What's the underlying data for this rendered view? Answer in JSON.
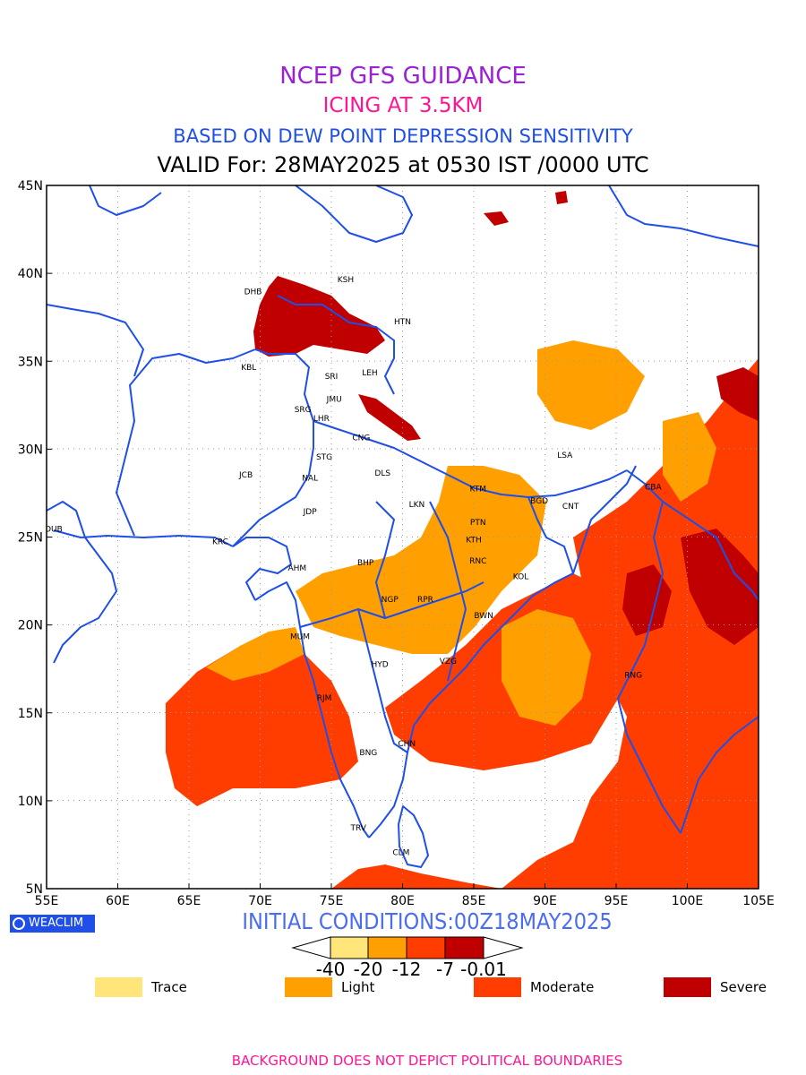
{
  "titles": {
    "line1": "NCEP GFS GUIDANCE",
    "line2": "ICING AT 3.5KM",
    "line3": "BASED ON DEW POINT DEPRESSION SENSITIVITY",
    "line4": "VALID For: 28MAY2025 at 0530 IST /0000 UTC"
  },
  "axes": {
    "x_ticks": [
      "55E",
      "60E",
      "65E",
      "70E",
      "75E",
      "80E",
      "85E",
      "90E",
      "95E",
      "100E",
      "105E"
    ],
    "y_ticks": [
      "45N",
      "40N",
      "35N",
      "30N",
      "25N",
      "20N",
      "15N",
      "10N",
      "5N"
    ],
    "lon_range": [
      55,
      105
    ],
    "lat_range": [
      5,
      45
    ],
    "grid": true
  },
  "stations": [
    {
      "code": "KSH",
      "lon": 76.0,
      "lat": 39.5
    },
    {
      "code": "DHB",
      "lon": 69.5,
      "lat": 38.8
    },
    {
      "code": "HTN",
      "lon": 80.0,
      "lat": 37.1
    },
    {
      "code": "KBL",
      "lon": 69.2,
      "lat": 34.5
    },
    {
      "code": "SRI",
      "lon": 75.0,
      "lat": 34.0
    },
    {
      "code": "LEH",
      "lon": 77.7,
      "lat": 34.2
    },
    {
      "code": "JMU",
      "lon": 75.2,
      "lat": 32.7
    },
    {
      "code": "SRG",
      "lon": 73.0,
      "lat": 32.1
    },
    {
      "code": "LHR",
      "lon": 74.3,
      "lat": 31.6
    },
    {
      "code": "CNG",
      "lon": 77.1,
      "lat": 30.5
    },
    {
      "code": "STG",
      "lon": 74.5,
      "lat": 29.4
    },
    {
      "code": "JCB",
      "lon": 69.0,
      "lat": 28.4
    },
    {
      "code": "NAL",
      "lon": 73.5,
      "lat": 28.2
    },
    {
      "code": "DLS",
      "lon": 78.6,
      "lat": 28.5
    },
    {
      "code": "LSA",
      "lon": 91.4,
      "lat": 29.5
    },
    {
      "code": "KTM",
      "lon": 85.3,
      "lat": 27.6
    },
    {
      "code": "CBA",
      "lon": 97.6,
      "lat": 27.7
    },
    {
      "code": "JDP",
      "lon": 73.5,
      "lat": 26.3
    },
    {
      "code": "LKN",
      "lon": 81.0,
      "lat": 26.7
    },
    {
      "code": "BGD",
      "lon": 89.6,
      "lat": 26.9
    },
    {
      "code": "CNT",
      "lon": 91.8,
      "lat": 26.6
    },
    {
      "code": "PTN",
      "lon": 85.3,
      "lat": 25.7
    },
    {
      "code": "DUB",
      "lon": 55.5,
      "lat": 25.3
    },
    {
      "code": "KTH",
      "lon": 85.0,
      "lat": 24.7
    },
    {
      "code": "KRC",
      "lon": 67.2,
      "lat": 24.6
    },
    {
      "code": "BHP",
      "lon": 77.4,
      "lat": 23.4
    },
    {
      "code": "RNC",
      "lon": 85.3,
      "lat": 23.5
    },
    {
      "code": "AHM",
      "lon": 72.6,
      "lat": 23.1
    },
    {
      "code": "KOL",
      "lon": 88.3,
      "lat": 22.6
    },
    {
      "code": "NGP",
      "lon": 79.1,
      "lat": 21.3
    },
    {
      "code": "RPR",
      "lon": 81.6,
      "lat": 21.3
    },
    {
      "code": "BWN",
      "lon": 85.7,
      "lat": 20.4
    },
    {
      "code": "MUM",
      "lon": 72.8,
      "lat": 19.2
    },
    {
      "code": "HYD",
      "lon": 78.4,
      "lat": 17.6
    },
    {
      "code": "VZG",
      "lon": 83.2,
      "lat": 17.8
    },
    {
      "code": "RNG",
      "lon": 96.2,
      "lat": 17.0
    },
    {
      "code": "RJM",
      "lon": 74.5,
      "lat": 15.7
    },
    {
      "code": "CHN",
      "lon": 80.3,
      "lat": 13.1
    },
    {
      "code": "BNG",
      "lon": 77.6,
      "lat": 12.6
    },
    {
      "code": "TRV",
      "lon": 76.9,
      "lat": 8.3
    },
    {
      "code": "CLM",
      "lon": 79.9,
      "lat": 6.9
    }
  ],
  "initial_conditions": "INITIAL CONDITIONS:00Z18MAY2025",
  "colorbar": {
    "labels": [
      "-40",
      "-20",
      "-12",
      "-7",
      "-0.01"
    ],
    "colors": [
      "#ffe57a",
      "#ff9f00",
      "#ff3d00",
      "#c00000"
    ]
  },
  "legend": [
    {
      "label": "Trace",
      "color": "#ffe57a"
    },
    {
      "label": "Light",
      "color": "#ff9f00"
    },
    {
      "label": "Moderate",
      "color": "#ff3d00"
    },
    {
      "label": "Severe",
      "color": "#c00000"
    }
  ],
  "badge_text": "WEACLIM",
  "footer": "BACKGROUND DOES NOT DEPICT POLITICAL BOUNDARIES",
  "colors": {
    "boundary": "#1f4fe6",
    "title1": "#9b21d6",
    "title2": "#ff1493",
    "title3": "#1f4fe6"
  }
}
